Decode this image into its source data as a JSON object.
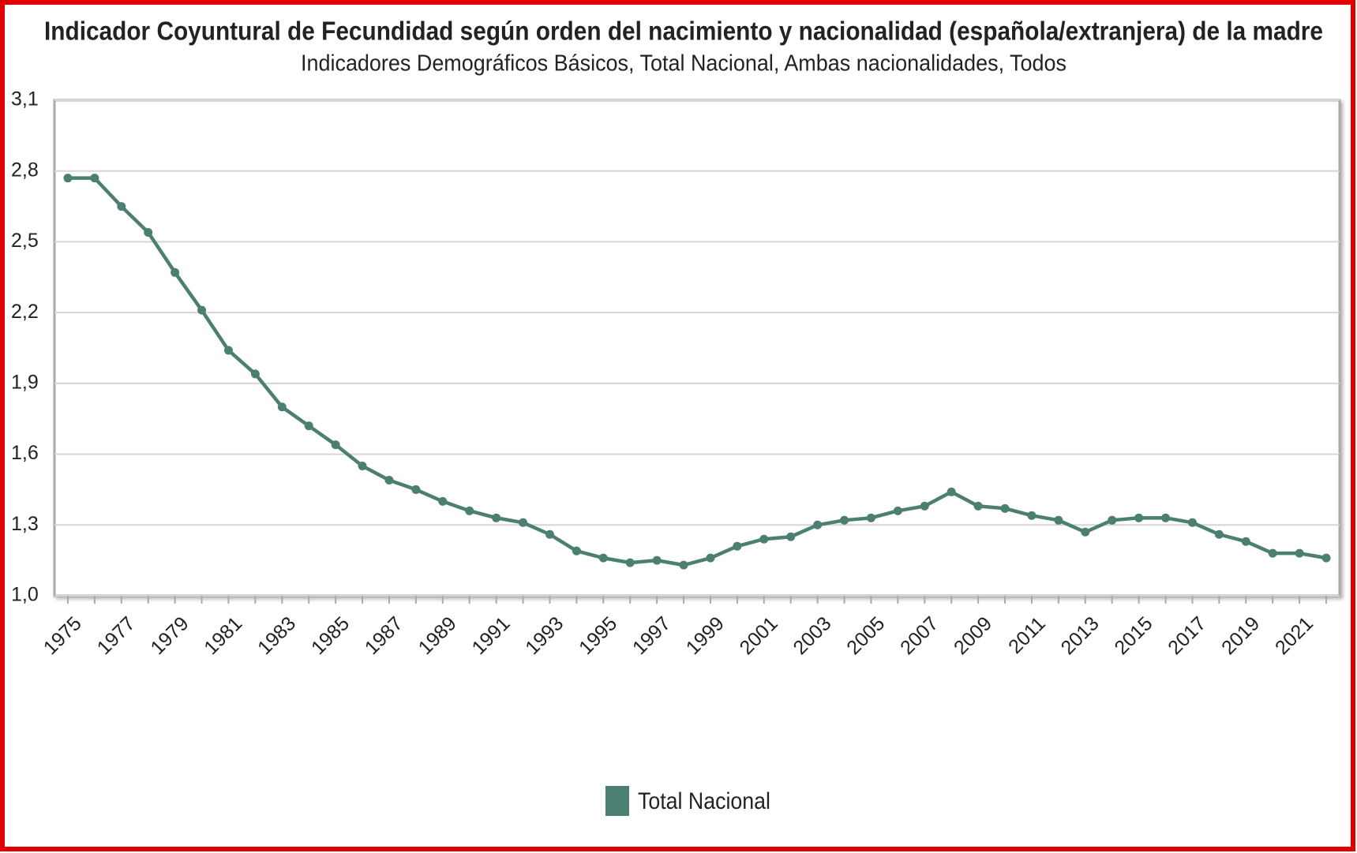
{
  "chart_data": {
    "type": "line",
    "title": "Indicador Coyuntural de Fecundidad según orden del nacimiento y nacionalidad (española/extranjera) de la madre",
    "subtitle": "Indicadores Demográficos Básicos, Total Nacional, Ambas nacionalidades, Todos",
    "categories": [
      "1975",
      null,
      "1977",
      null,
      "1979",
      null,
      "1981",
      null,
      "1983",
      null,
      "1985",
      null,
      "1987",
      null,
      "1989",
      null,
      "1991",
      null,
      "1993",
      null,
      "1995",
      null,
      "1997",
      null,
      "1999",
      null,
      "2001",
      null,
      "2003",
      null,
      "2005",
      null,
      "2007",
      null,
      "2009",
      null,
      "2011",
      null,
      "2013",
      null,
      "2015",
      null,
      "2017",
      null,
      "2019",
      null,
      "2021",
      null
    ],
    "series": [
      {
        "name": "Total Nacional",
        "color": "#4a7f72",
        "values": [
          2.77,
          2.77,
          2.65,
          2.54,
          2.37,
          2.21,
          2.04,
          1.94,
          1.8,
          1.72,
          1.64,
          1.55,
          1.49,
          1.45,
          1.4,
          1.36,
          1.33,
          1.31,
          1.26,
          1.19,
          1.16,
          1.14,
          1.15,
          1.13,
          1.16,
          1.21,
          1.24,
          1.25,
          1.3,
          1.32,
          1.33,
          1.36,
          1.38,
          1.44,
          1.38,
          1.37,
          1.34,
          1.32,
          1.27,
          1.32,
          1.33,
          1.33,
          1.31,
          1.26,
          1.23,
          1.18,
          1.18,
          1.16
        ]
      }
    ],
    "ylim": [
      1.0,
      3.1
    ],
    "yticks": [
      {
        "value": 1.0,
        "label": "1,0"
      },
      {
        "value": 1.3,
        "label": "1,3"
      },
      {
        "value": 1.6,
        "label": "1,6"
      },
      {
        "value": 1.9,
        "label": "1,9"
      },
      {
        "value": 2.2,
        "label": "2,2"
      },
      {
        "value": 2.5,
        "label": "2,5"
      },
      {
        "value": 2.8,
        "label": "2,8"
      },
      {
        "value": 3.1,
        "label": "3,1"
      }
    ],
    "grid": true,
    "legend": "bottom"
  }
}
